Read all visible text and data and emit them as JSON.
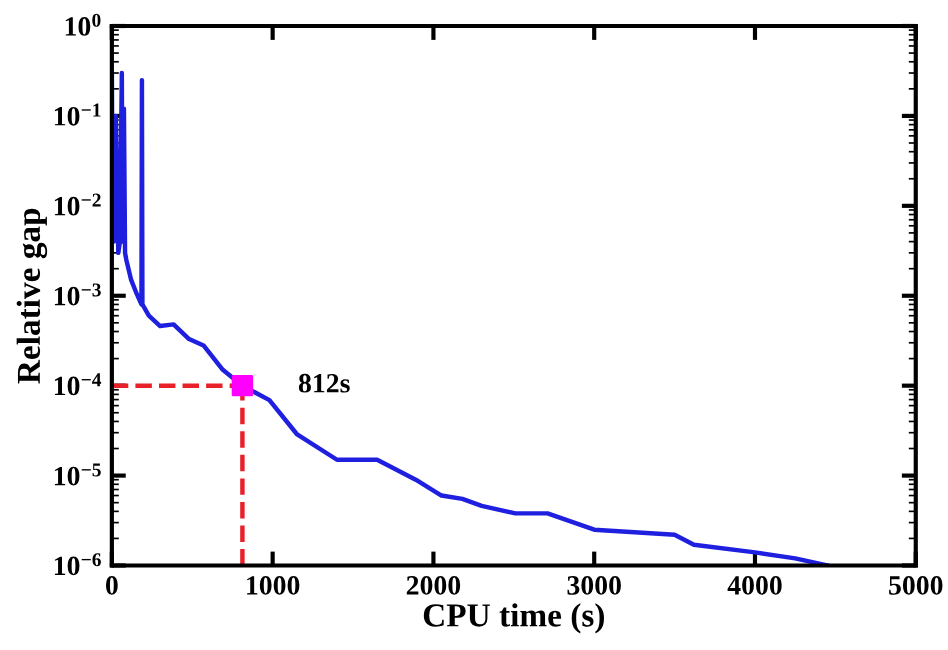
{
  "chart_data": {
    "type": "line",
    "xlabel": "CPU time (s)",
    "ylabel": "Relative gap",
    "log": "y",
    "xlim": [
      0,
      5000
    ],
    "xticks": [
      0,
      1000,
      2000,
      3000,
      4000,
      5000
    ],
    "ylim": [
      1e-06,
      1
    ],
    "yticks": [
      {
        "value": 1e-06,
        "label": "10$^{−6}$"
      },
      {
        "value": 1e-05,
        "label": "10$^{−5}$"
      },
      {
        "value": 0.0001,
        "label": "10$^{−4}$"
      },
      {
        "value": 0.001,
        "label": "10$^{−3}$"
      },
      {
        "value": 0.01,
        "label": "10$^{−2}$"
      },
      {
        "value": 0.1,
        "label": "10$^{−1}$"
      },
      {
        "value": 1,
        "label": "10$^{0}$"
      }
    ],
    "grid": false,
    "marker": "none",
    "line_style": "solid",
    "series": [
      {
        "color": "#1f1fe0",
        "x": [
          0,
          5,
          12,
          25,
          40,
          50,
          62,
          66,
          75,
          82,
          90,
          120,
          150,
          184,
          187,
          190,
          230,
          300,
          384,
          480,
          570,
          690,
          812,
          980,
          1150,
          1400,
          1650,
          1890,
          2050,
          2180,
          2300,
          2510,
          2710,
          3000,
          3500,
          3620,
          4000,
          4250,
          4450
        ],
        "values": [
          0.3,
          0.005,
          0.004,
          0.1,
          0.003,
          0.004,
          0.3,
          0.004,
          0.12,
          0.003,
          0.0025,
          0.0015,
          0.0011,
          0.0008,
          0.25,
          0.0008,
          0.0006,
          0.00046,
          0.00048,
          0.00033,
          0.00028,
          0.00015,
          0.0001,
          6.9e-05,
          2.9e-05,
          1.5e-05,
          1.5e-05,
          9e-06,
          6e-06,
          5.5e-06,
          4.6e-06,
          3.8e-06,
          3.8e-06,
          2.5e-06,
          2.2e-06,
          1.7e-06,
          1.4e-06,
          1.2e-06,
          1e-06
        ]
      },
      {
        "color": "#e8202a",
        "line_style": "dashed",
        "x": [
          0,
          812
        ],
        "values": [
          0.0001,
          0.0001
        ]
      },
      {
        "color": "#e8202a",
        "line_style": "dashed",
        "x": [
          812,
          812
        ],
        "values": [
          1e-06,
          0.0001
        ]
      },
      {
        "type": "scatter",
        "marker": "square",
        "color": "#ff00ff",
        "x": [
          812
        ],
        "values": [
          0.0001
        ]
      }
    ],
    "annotations": [
      {
        "text": "812s",
        "x": 812,
        "y": 0.0001
      }
    ]
  }
}
